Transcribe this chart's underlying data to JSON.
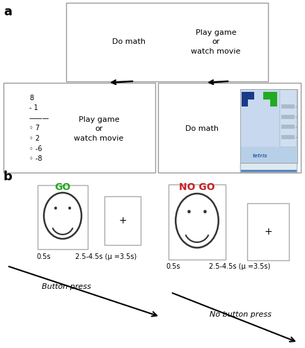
{
  "panel_a_label": "a",
  "panel_b_label": "b",
  "top_left_text": "Do math",
  "top_right_text": "Play game\nor\nwatch movie",
  "play_game_text": "Play game\nor\nwatch movie",
  "do_math_text": "Do math",
  "go_label": "GO",
  "go_color": "#22aa22",
  "nogo_label": "NO GO",
  "nogo_color": "#cc2222",
  "time_label_05s": "0.5s",
  "time_label_isi": "2.5-4.5s (μ =3.5s)",
  "button_press_label": "Button press",
  "no_button_press_label": "No button press",
  "bg_color": "#ffffff",
  "edge_color": "#999999"
}
